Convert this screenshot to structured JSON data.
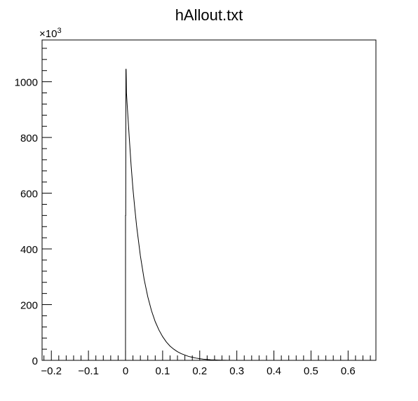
{
  "chart_data": {
    "type": "histogram",
    "title": "hAllout.txt",
    "xlabel": "",
    "ylabel": "",
    "xlim": [
      -0.225,
      0.675
    ],
    "ylim": [
      0,
      1150
    ],
    "y_multiplier_label": "×10",
    "y_multiplier_exponent": "3",
    "x_ticks": [
      -0.2,
      -0.1,
      0,
      0.1,
      0.2,
      0.3,
      0.4,
      0.5,
      0.6
    ],
    "x_tick_labels": [
      "−0.2",
      "−0.1",
      "0",
      "0.1",
      "0.2",
      "0.3",
      "0.4",
      "0.5",
      "0.6"
    ],
    "y_ticks": [
      0,
      200,
      400,
      600,
      800,
      1000
    ],
    "y_tick_labels": [
      "0",
      "200",
      "400",
      "600",
      "800",
      "1000"
    ],
    "grid": false,
    "line_color": "#000000",
    "series": [
      {
        "x": [
          -0.01,
          -0.0001,
          0.0,
          0.0005,
          0.001,
          0.0015,
          0.002,
          0.0025,
          0.005,
          0.01,
          0.015,
          0.02,
          0.025,
          0.03,
          0.04,
          0.05,
          0.06,
          0.07,
          0.08,
          0.09,
          0.1,
          0.11,
          0.12,
          0.13,
          0.14,
          0.15,
          0.16,
          0.17,
          0.18,
          0.19,
          0.2,
          0.21,
          0.22,
          0.23,
          0.24,
          0.25,
          0.26,
          0.27,
          0.28
        ],
        "y": [
          0,
          0,
          520,
          520,
          1045,
          1045,
          1010,
          960,
          905,
          800,
          700,
          615,
          545,
          480,
          375,
          292,
          228,
          178,
          139,
          109,
          85,
          66,
          51,
          40,
          31,
          24,
          19,
          14,
          11,
          8,
          6,
          4,
          3,
          2,
          1.5,
          1,
          0.5,
          0.2,
          0
        ]
      }
    ]
  }
}
